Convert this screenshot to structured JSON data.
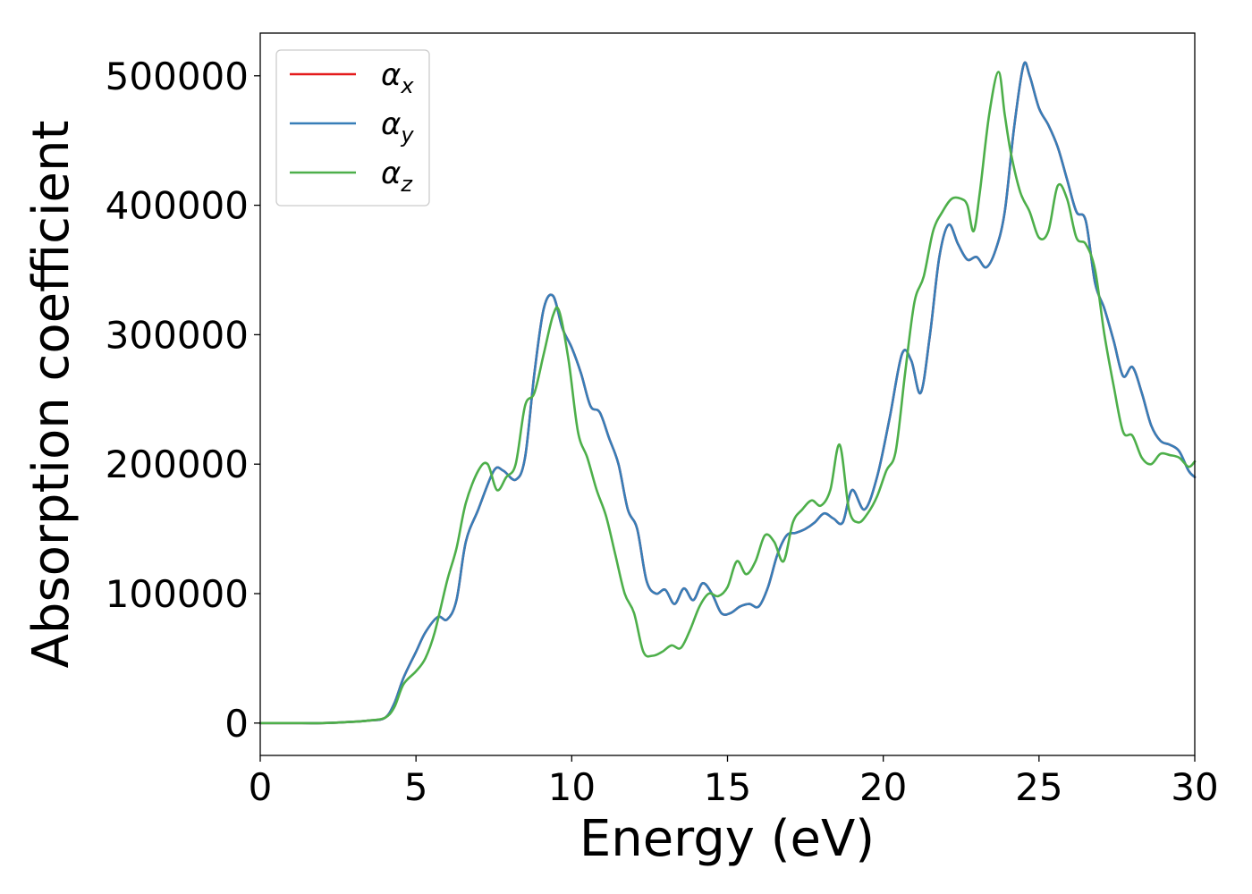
{
  "chart_data": {
    "type": "line",
    "title": "",
    "xlabel": "Energy (eV)",
    "ylabel": "Absorption coefficient",
    "xlim": [
      0,
      30
    ],
    "ylim": [
      -25000,
      533000
    ],
    "xticks": [
      0,
      5,
      10,
      15,
      20,
      25,
      30
    ],
    "yticks": [
      0,
      100000,
      200000,
      300000,
      400000,
      500000
    ],
    "grid": false,
    "legend_position": "top-left",
    "series": [
      {
        "name": "αx",
        "legend_main": "α",
        "legend_sub": "x",
        "color": "#e41a1c",
        "x": [
          0,
          1,
          2,
          3,
          3.5,
          4,
          4.3,
          4.6,
          5,
          5.3,
          5.7,
          6,
          6.3,
          6.6,
          7,
          7.5,
          7.8,
          8.2,
          8.5,
          8.8,
          9.1,
          9.4,
          9.7,
          10,
          10.3,
          10.6,
          10.9,
          11.2,
          11.5,
          11.8,
          12.1,
          12.4,
          12.7,
          13,
          13.3,
          13.6,
          13.9,
          14.2,
          14.5,
          14.8,
          15.1,
          15.4,
          15.7,
          16,
          16.3,
          16.6,
          16.9,
          17.2,
          17.5,
          17.8,
          18.1,
          18.4,
          18.7,
          19,
          19.4,
          19.8,
          20.2,
          20.6,
          20.9,
          21.2,
          21.5,
          21.8,
          22.1,
          22.4,
          22.7,
          23,
          23.3,
          23.6,
          23.9,
          24.2,
          24.5,
          24.7,
          25,
          25.3,
          25.6,
          25.9,
          26.2,
          26.5,
          26.8,
          27.1,
          27.4,
          27.7,
          28,
          28.3,
          28.6,
          28.9,
          29.2,
          29.5,
          29.8,
          30
        ],
        "y": [
          0,
          0,
          0,
          1000,
          2000,
          4000,
          15000,
          35000,
          55000,
          70000,
          82000,
          80000,
          95000,
          140000,
          165000,
          195000,
          195000,
          188000,
          205000,
          270000,
          320000,
          330000,
          305000,
          290000,
          270000,
          245000,
          240000,
          220000,
          200000,
          165000,
          150000,
          110000,
          100000,
          103000,
          92000,
          104000,
          95000,
          108000,
          100000,
          85000,
          85000,
          90000,
          92000,
          90000,
          105000,
          130000,
          145000,
          147000,
          150000,
          155000,
          162000,
          158000,
          155000,
          180000,
          165000,
          190000,
          235000,
          285000,
          280000,
          255000,
          300000,
          360000,
          385000,
          370000,
          358000,
          360000,
          352000,
          365000,
          395000,
          460000,
          508000,
          500000,
          475000,
          462000,
          445000,
          420000,
          395000,
          388000,
          340000,
          320000,
          295000,
          268000,
          275000,
          255000,
          230000,
          218000,
          215000,
          210000,
          195000,
          190000
        ]
      },
      {
        "name": "αy",
        "legend_main": "α",
        "legend_sub": "y",
        "color": "#377eb8",
        "x": [
          0,
          1,
          2,
          3,
          3.5,
          4,
          4.3,
          4.6,
          5,
          5.3,
          5.7,
          6,
          6.3,
          6.6,
          7,
          7.5,
          7.8,
          8.2,
          8.5,
          8.8,
          9.1,
          9.4,
          9.7,
          10,
          10.3,
          10.6,
          10.9,
          11.2,
          11.5,
          11.8,
          12.1,
          12.4,
          12.7,
          13,
          13.3,
          13.6,
          13.9,
          14.2,
          14.5,
          14.8,
          15.1,
          15.4,
          15.7,
          16,
          16.3,
          16.6,
          16.9,
          17.2,
          17.5,
          17.8,
          18.1,
          18.4,
          18.7,
          19,
          19.4,
          19.8,
          20.2,
          20.6,
          20.9,
          21.2,
          21.5,
          21.8,
          22.1,
          22.4,
          22.7,
          23,
          23.3,
          23.6,
          23.9,
          24.2,
          24.5,
          24.7,
          25,
          25.3,
          25.6,
          25.9,
          26.2,
          26.5,
          26.8,
          27.1,
          27.4,
          27.7,
          28,
          28.3,
          28.6,
          28.9,
          29.2,
          29.5,
          29.8,
          30
        ],
        "y": [
          0,
          0,
          0,
          1000,
          2000,
          4000,
          15000,
          35000,
          55000,
          70000,
          82000,
          80000,
          95000,
          140000,
          165000,
          195000,
          195000,
          188000,
          205000,
          270000,
          320000,
          330000,
          305000,
          290000,
          270000,
          245000,
          240000,
          220000,
          200000,
          165000,
          150000,
          110000,
          100000,
          103000,
          92000,
          104000,
          95000,
          108000,
          100000,
          85000,
          85000,
          90000,
          92000,
          90000,
          105000,
          130000,
          145000,
          147000,
          150000,
          155000,
          162000,
          158000,
          155000,
          180000,
          165000,
          190000,
          235000,
          285000,
          280000,
          255000,
          300000,
          360000,
          385000,
          370000,
          358000,
          360000,
          352000,
          365000,
          395000,
          460000,
          508000,
          500000,
          475000,
          462000,
          445000,
          420000,
          395000,
          388000,
          340000,
          320000,
          295000,
          268000,
          275000,
          255000,
          230000,
          218000,
          215000,
          210000,
          195000,
          190000
        ]
      },
      {
        "name": "αz",
        "legend_main": "α",
        "legend_sub": "z",
        "color": "#4daf4a",
        "x": [
          0,
          1,
          2,
          3,
          3.5,
          4,
          4.3,
          4.6,
          5,
          5.3,
          5.6,
          6,
          6.3,
          6.6,
          7,
          7.3,
          7.6,
          7.9,
          8.2,
          8.5,
          8.8,
          9.1,
          9.4,
          9.6,
          9.9,
          10.2,
          10.5,
          10.8,
          11.1,
          11.4,
          11.7,
          12,
          12.3,
          12.6,
          12.9,
          13.2,
          13.5,
          13.8,
          14.1,
          14.4,
          14.7,
          15,
          15.3,
          15.6,
          15.9,
          16.2,
          16.5,
          16.8,
          17.1,
          17.4,
          17.7,
          18,
          18.3,
          18.6,
          18.9,
          19.2,
          19.5,
          19.8,
          20.1,
          20.4,
          20.7,
          21,
          21.3,
          21.6,
          21.9,
          22.2,
          22.5,
          22.7,
          22.9,
          23.1,
          23.4,
          23.7,
          23.9,
          24.1,
          24.4,
          24.7,
          25,
          25.3,
          25.6,
          25.9,
          26.2,
          26.5,
          26.8,
          27.1,
          27.4,
          27.7,
          28,
          28.3,
          28.6,
          28.9,
          29.2,
          29.5,
          29.8,
          30
        ],
        "y": [
          0,
          0,
          0,
          1000,
          2000,
          4000,
          12000,
          30000,
          40000,
          50000,
          70000,
          110000,
          135000,
          170000,
          195000,
          200000,
          180000,
          190000,
          200000,
          245000,
          255000,
          285000,
          315000,
          318000,
          280000,
          225000,
          205000,
          180000,
          160000,
          130000,
          100000,
          85000,
          55000,
          52000,
          55000,
          60000,
          58000,
          72000,
          90000,
          100000,
          98000,
          105000,
          125000,
          115000,
          125000,
          145000,
          140000,
          125000,
          155000,
          165000,
          172000,
          168000,
          180000,
          215000,
          165000,
          155000,
          162000,
          175000,
          195000,
          210000,
          270000,
          325000,
          345000,
          380000,
          395000,
          405000,
          405000,
          400000,
          380000,
          410000,
          470000,
          503000,
          470000,
          440000,
          410000,
          395000,
          375000,
          380000,
          415000,
          405000,
          375000,
          370000,
          350000,
          300000,
          260000,
          225000,
          222000,
          205000,
          200000,
          208000,
          207000,
          205000,
          198000,
          202000
        ]
      }
    ]
  }
}
